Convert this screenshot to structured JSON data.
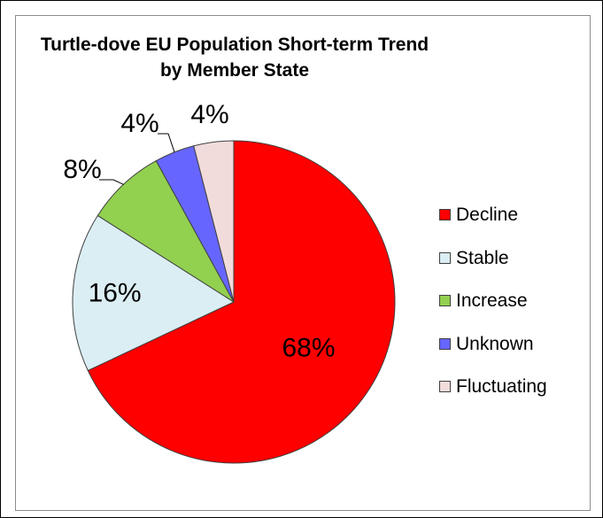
{
  "chart_data": {
    "type": "pie",
    "title": [
      "Turtle-dove EU Population Short-term Trend",
      "by Member State"
    ],
    "categories": [
      "Decline",
      "Stable",
      "Increase",
      "Unknown",
      "Fluctuating"
    ],
    "values": [
      68,
      16,
      8,
      4,
      4
    ],
    "labels": [
      "68%",
      "16%",
      "8%",
      "4%",
      "4%"
    ],
    "colors": [
      "#ff0000",
      "#dbeef4",
      "#92d050",
      "#6666ff",
      "#f2dcdb"
    ],
    "legend_position": "right",
    "start_angle": "12 o'clock",
    "direction": "clockwise"
  }
}
